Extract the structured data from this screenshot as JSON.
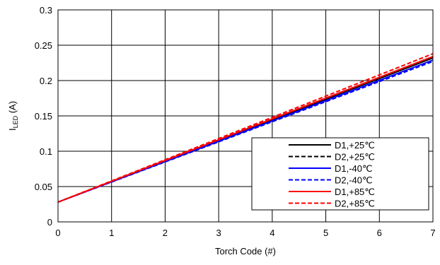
{
  "chart_data": {
    "type": "line",
    "xlabel": "Torch Code (#)",
    "ylabel_main": "I",
    "ylabel_sub": "LED",
    "ylabel_unit": " (A)",
    "xlim": [
      0,
      7
    ],
    "ylim": [
      0,
      0.3
    ],
    "x_ticks": [
      "0",
      "1",
      "2",
      "3",
      "4",
      "5",
      "6",
      "7"
    ],
    "y_ticks": [
      "0",
      "0.05",
      "0.1",
      "0.15",
      "0.2",
      "0.25",
      "0.3"
    ],
    "grid": true,
    "legend_position": "bottom-right",
    "x": [
      0,
      7
    ],
    "series": [
      {
        "name": "D1,+25℃",
        "color": "#000000",
        "dash": "solid",
        "values": [
          0.028,
          0.232
        ]
      },
      {
        "name": "D2,+25℃",
        "color": "#000000",
        "dash": "dashed",
        "values": [
          0.028,
          0.234
        ]
      },
      {
        "name": "D1,-40℃",
        "color": "#0000ff",
        "dash": "solid",
        "values": [
          0.028,
          0.229
        ]
      },
      {
        "name": "D2,-40℃",
        "color": "#0000ff",
        "dash": "dashed",
        "values": [
          0.028,
          0.227
        ]
      },
      {
        "name": "D1,+85℃",
        "color": "#ff0000",
        "dash": "solid",
        "values": [
          0.028,
          0.234
        ]
      },
      {
        "name": "D2,+85℃",
        "color": "#ff0000",
        "dash": "dashed",
        "values": [
          0.028,
          0.238
        ]
      }
    ]
  }
}
